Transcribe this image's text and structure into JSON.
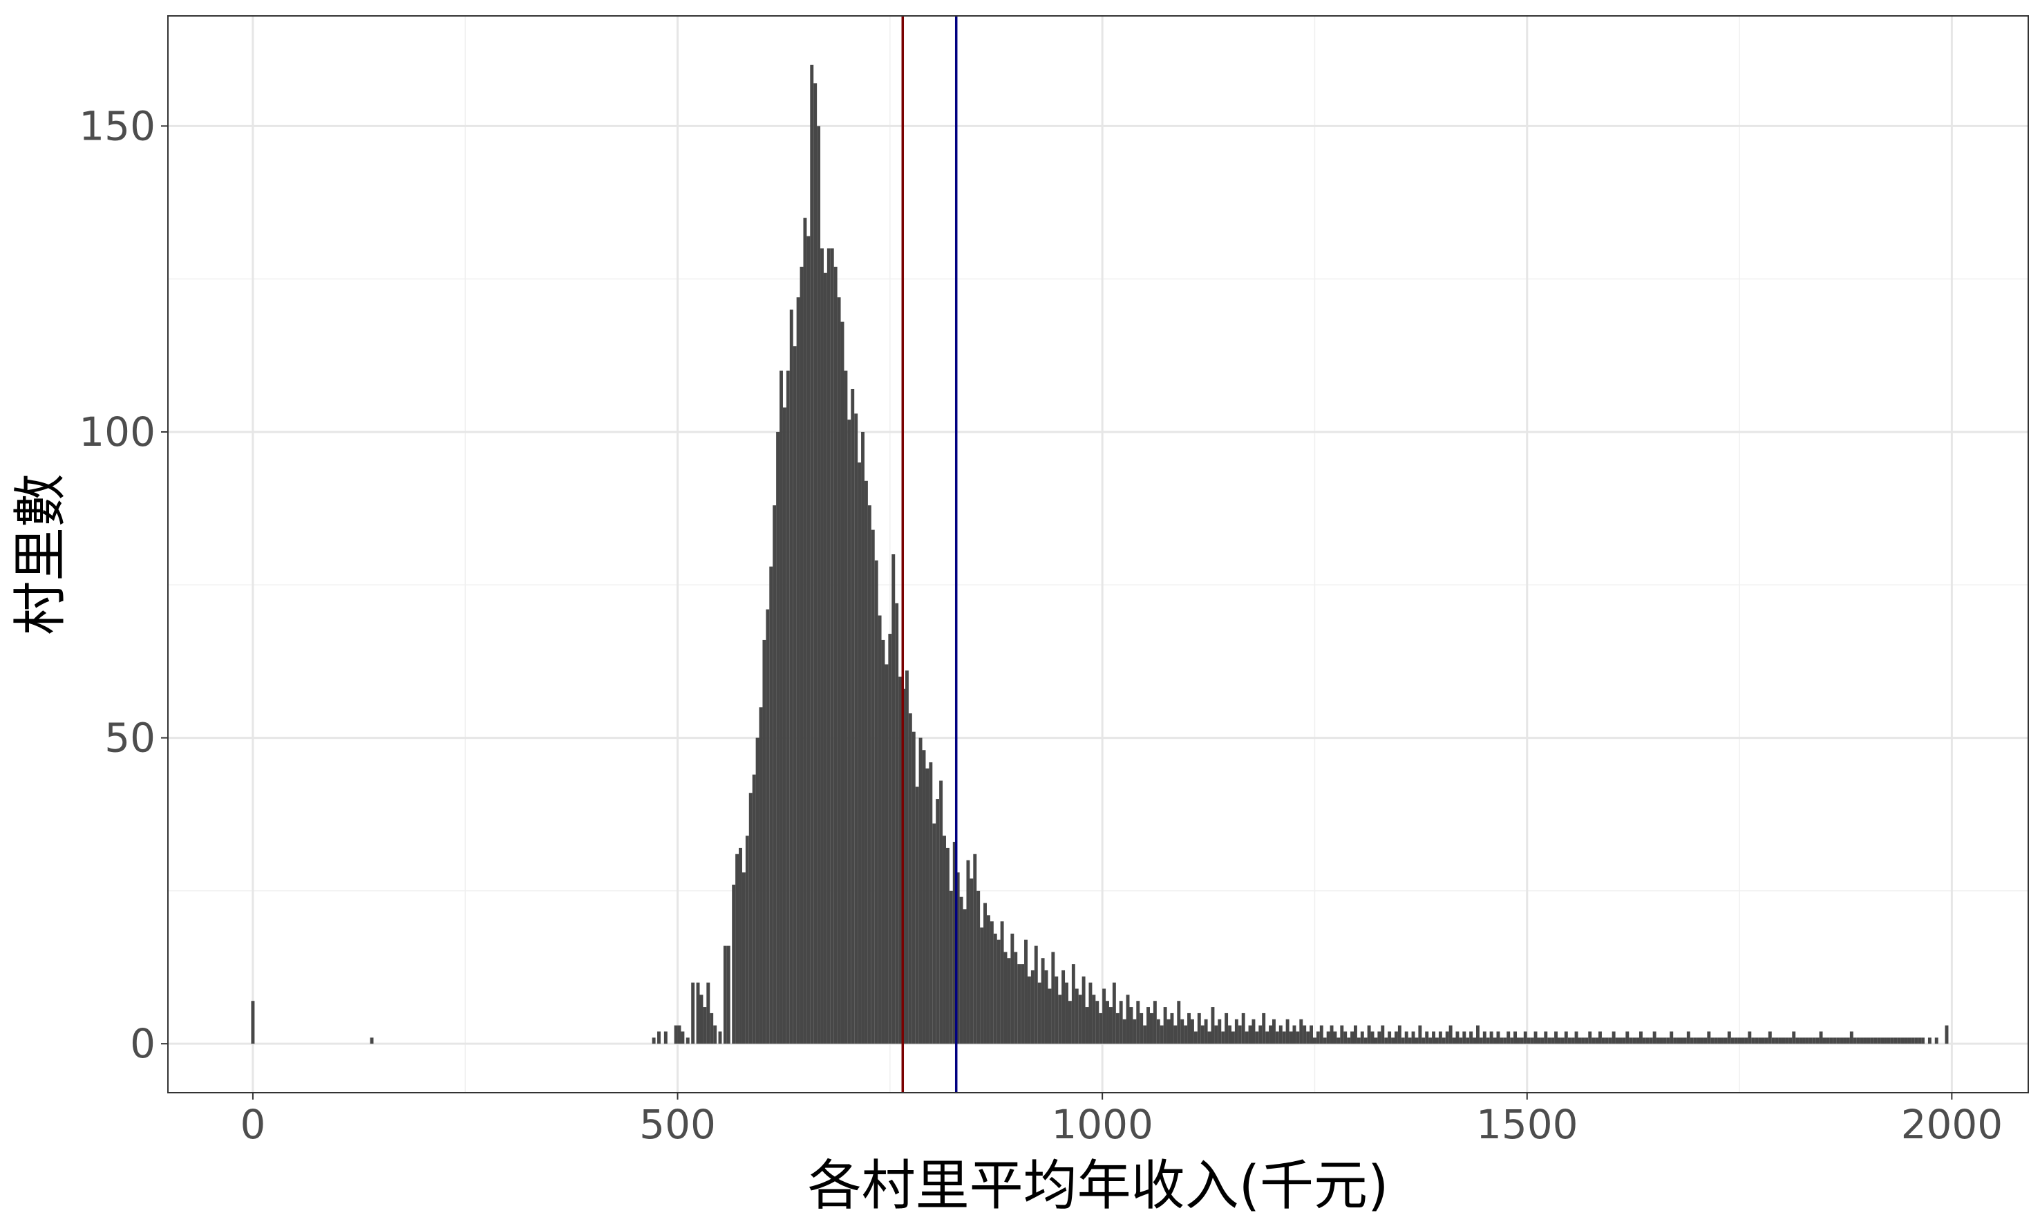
{
  "chart_data": {
    "type": "bar",
    "subtype": "histogram",
    "title": "",
    "xlabel": "各村里平均年收入(千元)",
    "ylabel": "村里數",
    "xlim": [
      -100,
      2090
    ],
    "ylim": [
      -8,
      168
    ],
    "x_ticks": [
      0,
      500,
      1000,
      1500,
      2000
    ],
    "x_tick_labels": [
      "0",
      "500",
      "1000",
      "1500",
      "2000"
    ],
    "y_ticks": [
      0,
      50,
      100,
      150
    ],
    "y_tick_labels": [
      "0",
      "50",
      "100",
      "150"
    ],
    "grid": true,
    "theme": "bw",
    "bin_width": 4,
    "bar_color": "#474747",
    "bins": [
      [
        0,
        7
      ],
      [
        140,
        1
      ],
      [
        472,
        1
      ],
      [
        478,
        2
      ],
      [
        486,
        2
      ],
      [
        498,
        3
      ],
      [
        502,
        3
      ],
      [
        506,
        2
      ],
      [
        512,
        1
      ],
      [
        518,
        10
      ],
      [
        524,
        10
      ],
      [
        528,
        8
      ],
      [
        532,
        6
      ],
      [
        536,
        10
      ],
      [
        540,
        5
      ],
      [
        544,
        3
      ],
      [
        550,
        2
      ],
      [
        556,
        16
      ],
      [
        560,
        16
      ],
      [
        566,
        26
      ],
      [
        570,
        31
      ],
      [
        574,
        32
      ],
      [
        578,
        28
      ],
      [
        582,
        34
      ],
      [
        586,
        41
      ],
      [
        590,
        44
      ],
      [
        594,
        50
      ],
      [
        598,
        55
      ],
      [
        602,
        66
      ],
      [
        606,
        71
      ],
      [
        610,
        78
      ],
      [
        614,
        88
      ],
      [
        618,
        100
      ],
      [
        622,
        110
      ],
      [
        626,
        104
      ],
      [
        630,
        110
      ],
      [
        634,
        120
      ],
      [
        638,
        114
      ],
      [
        642,
        122
      ],
      [
        646,
        127
      ],
      [
        650,
        135
      ],
      [
        654,
        132
      ],
      [
        658,
        160
      ],
      [
        662,
        157
      ],
      [
        666,
        150
      ],
      [
        670,
        130
      ],
      [
        674,
        126
      ],
      [
        678,
        130
      ],
      [
        682,
        130
      ],
      [
        686,
        127
      ],
      [
        690,
        122
      ],
      [
        694,
        118
      ],
      [
        698,
        110
      ],
      [
        702,
        102
      ],
      [
        706,
        107
      ],
      [
        710,
        103
      ],
      [
        714,
        95
      ],
      [
        718,
        100
      ],
      [
        722,
        92
      ],
      [
        726,
        88
      ],
      [
        730,
        84
      ],
      [
        734,
        79
      ],
      [
        738,
        70
      ],
      [
        742,
        66
      ],
      [
        746,
        62
      ],
      [
        750,
        67
      ],
      [
        754,
        80
      ],
      [
        758,
        72
      ],
      [
        762,
        60
      ],
      [
        766,
        58
      ],
      [
        770,
        61
      ],
      [
        774,
        54
      ],
      [
        778,
        51
      ],
      [
        782,
        42
      ],
      [
        786,
        50
      ],
      [
        790,
        48
      ],
      [
        794,
        45
      ],
      [
        798,
        46
      ],
      [
        802,
        36
      ],
      [
        806,
        40
      ],
      [
        810,
        43
      ],
      [
        814,
        34
      ],
      [
        818,
        32
      ],
      [
        822,
        25
      ],
      [
        826,
        33
      ],
      [
        830,
        28
      ],
      [
        834,
        24
      ],
      [
        838,
        22
      ],
      [
        842,
        30
      ],
      [
        846,
        27
      ],
      [
        850,
        31
      ],
      [
        854,
        25
      ],
      [
        858,
        19
      ],
      [
        862,
        23
      ],
      [
        866,
        21
      ],
      [
        870,
        20
      ],
      [
        874,
        18
      ],
      [
        878,
        17
      ],
      [
        882,
        20
      ],
      [
        886,
        15
      ],
      [
        890,
        14
      ],
      [
        894,
        18
      ],
      [
        898,
        15
      ],
      [
        902,
        13
      ],
      [
        906,
        13
      ],
      [
        910,
        17
      ],
      [
        914,
        11
      ],
      [
        918,
        12
      ],
      [
        922,
        16
      ],
      [
        926,
        10
      ],
      [
        930,
        14
      ],
      [
        934,
        12
      ],
      [
        938,
        9
      ],
      [
        942,
        15
      ],
      [
        946,
        11
      ],
      [
        950,
        8
      ],
      [
        954,
        12
      ],
      [
        958,
        10
      ],
      [
        962,
        7
      ],
      [
        966,
        13
      ],
      [
        970,
        9
      ],
      [
        974,
        8
      ],
      [
        978,
        11
      ],
      [
        982,
        6
      ],
      [
        986,
        10
      ],
      [
        990,
        8
      ],
      [
        994,
        7
      ],
      [
        998,
        5
      ],
      [
        1002,
        9
      ],
      [
        1006,
        7
      ],
      [
        1010,
        6
      ],
      [
        1014,
        10
      ],
      [
        1018,
        5
      ],
      [
        1022,
        7
      ],
      [
        1026,
        4
      ],
      [
        1030,
        8
      ],
      [
        1034,
        6
      ],
      [
        1038,
        4
      ],
      [
        1042,
        7
      ],
      [
        1046,
        5
      ],
      [
        1050,
        3
      ],
      [
        1054,
        6
      ],
      [
        1058,
        5
      ],
      [
        1062,
        7
      ],
      [
        1066,
        4
      ],
      [
        1070,
        3
      ],
      [
        1074,
        6
      ],
      [
        1078,
        4
      ],
      [
        1082,
        5
      ],
      [
        1086,
        3
      ],
      [
        1090,
        7
      ],
      [
        1094,
        4
      ],
      [
        1098,
        3
      ],
      [
        1102,
        5
      ],
      [
        1106,
        4
      ],
      [
        1110,
        2
      ],
      [
        1114,
        5
      ],
      [
        1118,
        3
      ],
      [
        1122,
        4
      ],
      [
        1126,
        2
      ],
      [
        1130,
        6
      ],
      [
        1134,
        3
      ],
      [
        1138,
        4
      ],
      [
        1142,
        2
      ],
      [
        1146,
        5
      ],
      [
        1150,
        3
      ],
      [
        1154,
        2
      ],
      [
        1158,
        4
      ],
      [
        1162,
        3
      ],
      [
        1166,
        5
      ],
      [
        1170,
        2
      ],
      [
        1174,
        3
      ],
      [
        1178,
        4
      ],
      [
        1182,
        2
      ],
      [
        1186,
        3
      ],
      [
        1190,
        5
      ],
      [
        1194,
        2
      ],
      [
        1198,
        3
      ],
      [
        1202,
        4
      ],
      [
        1206,
        2
      ],
      [
        1210,
        3
      ],
      [
        1214,
        2
      ],
      [
        1218,
        4
      ],
      [
        1222,
        2
      ],
      [
        1226,
        3
      ],
      [
        1230,
        2
      ],
      [
        1234,
        4
      ],
      [
        1238,
        3
      ],
      [
        1242,
        2
      ],
      [
        1246,
        3
      ],
      [
        1250,
        1
      ],
      [
        1254,
        2
      ],
      [
        1258,
        3
      ],
      [
        1262,
        1
      ],
      [
        1266,
        2
      ],
      [
        1270,
        3
      ],
      [
        1274,
        2
      ],
      [
        1278,
        1
      ],
      [
        1282,
        3
      ],
      [
        1286,
        2
      ],
      [
        1290,
        1
      ],
      [
        1294,
        2
      ],
      [
        1298,
        3
      ],
      [
        1302,
        1
      ],
      [
        1306,
        2
      ],
      [
        1310,
        1
      ],
      [
        1314,
        3
      ],
      [
        1318,
        2
      ],
      [
        1322,
        1
      ],
      [
        1326,
        2
      ],
      [
        1330,
        3
      ],
      [
        1334,
        1
      ],
      [
        1338,
        2
      ],
      [
        1342,
        1
      ],
      [
        1346,
        2
      ],
      [
        1350,
        3
      ],
      [
        1354,
        1
      ],
      [
        1358,
        2
      ],
      [
        1362,
        1
      ],
      [
        1366,
        2
      ],
      [
        1370,
        1
      ],
      [
        1374,
        3
      ],
      [
        1378,
        1
      ],
      [
        1382,
        2
      ],
      [
        1386,
        1
      ],
      [
        1390,
        2
      ],
      [
        1394,
        1
      ],
      [
        1398,
        2
      ],
      [
        1402,
        1
      ],
      [
        1406,
        2
      ],
      [
        1410,
        3
      ],
      [
        1414,
        1
      ],
      [
        1418,
        2
      ],
      [
        1422,
        1
      ],
      [
        1426,
        2
      ],
      [
        1430,
        1
      ],
      [
        1434,
        2
      ],
      [
        1438,
        1
      ],
      [
        1442,
        3
      ],
      [
        1446,
        1
      ],
      [
        1450,
        2
      ],
      [
        1454,
        1
      ],
      [
        1458,
        2
      ],
      [
        1462,
        1
      ],
      [
        1466,
        2
      ],
      [
        1470,
        1
      ],
      [
        1474,
        1
      ],
      [
        1478,
        2
      ],
      [
        1482,
        1
      ],
      [
        1486,
        2
      ],
      [
        1490,
        1
      ],
      [
        1494,
        1
      ],
      [
        1498,
        2
      ],
      [
        1502,
        1
      ],
      [
        1506,
        1
      ],
      [
        1510,
        2
      ],
      [
        1514,
        1
      ],
      [
        1518,
        1
      ],
      [
        1522,
        2
      ],
      [
        1526,
        1
      ],
      [
        1530,
        1
      ],
      [
        1534,
        2
      ],
      [
        1538,
        1
      ],
      [
        1542,
        1
      ],
      [
        1546,
        2
      ],
      [
        1550,
        1
      ],
      [
        1554,
        1
      ],
      [
        1558,
        2
      ],
      [
        1562,
        1
      ],
      [
        1566,
        1
      ],
      [
        1570,
        1
      ],
      [
        1574,
        2
      ],
      [
        1578,
        1
      ],
      [
        1582,
        1
      ],
      [
        1586,
        2
      ],
      [
        1590,
        1
      ],
      [
        1594,
        1
      ],
      [
        1598,
        1
      ],
      [
        1602,
        2
      ],
      [
        1606,
        1
      ],
      [
        1610,
        1
      ],
      [
        1614,
        1
      ],
      [
        1618,
        2
      ],
      [
        1622,
        1
      ],
      [
        1626,
        1
      ],
      [
        1630,
        1
      ],
      [
        1634,
        2
      ],
      [
        1638,
        1
      ],
      [
        1642,
        1
      ],
      [
        1646,
        1
      ],
      [
        1650,
        2
      ],
      [
        1654,
        1
      ],
      [
        1658,
        1
      ],
      [
        1662,
        1
      ],
      [
        1666,
        1
      ],
      [
        1670,
        2
      ],
      [
        1674,
        1
      ],
      [
        1678,
        1
      ],
      [
        1682,
        1
      ],
      [
        1686,
        1
      ],
      [
        1690,
        2
      ],
      [
        1694,
        1
      ],
      [
        1698,
        1
      ],
      [
        1702,
        1
      ],
      [
        1706,
        1
      ],
      [
        1710,
        1
      ],
      [
        1714,
        2
      ],
      [
        1718,
        1
      ],
      [
        1722,
        1
      ],
      [
        1726,
        1
      ],
      [
        1730,
        1
      ],
      [
        1734,
        1
      ],
      [
        1738,
        2
      ],
      [
        1742,
        1
      ],
      [
        1746,
        1
      ],
      [
        1750,
        1
      ],
      [
        1754,
        1
      ],
      [
        1758,
        1
      ],
      [
        1762,
        2
      ],
      [
        1766,
        1
      ],
      [
        1770,
        1
      ],
      [
        1774,
        1
      ],
      [
        1778,
        1
      ],
      [
        1782,
        1
      ],
      [
        1786,
        2
      ],
      [
        1790,
        1
      ],
      [
        1794,
        1
      ],
      [
        1798,
        1
      ],
      [
        1802,
        1
      ],
      [
        1806,
        1
      ],
      [
        1810,
        1
      ],
      [
        1814,
        2
      ],
      [
        1818,
        1
      ],
      [
        1822,
        1
      ],
      [
        1826,
        1
      ],
      [
        1830,
        1
      ],
      [
        1834,
        1
      ],
      [
        1838,
        1
      ],
      [
        1842,
        1
      ],
      [
        1846,
        2
      ],
      [
        1850,
        1
      ],
      [
        1854,
        1
      ],
      [
        1858,
        1
      ],
      [
        1862,
        1
      ],
      [
        1866,
        1
      ],
      [
        1870,
        1
      ],
      [
        1874,
        1
      ],
      [
        1878,
        1
      ],
      [
        1882,
        2
      ],
      [
        1886,
        1
      ],
      [
        1890,
        1
      ],
      [
        1894,
        1
      ],
      [
        1898,
        1
      ],
      [
        1902,
        1
      ],
      [
        1906,
        1
      ],
      [
        1910,
        1
      ],
      [
        1914,
        1
      ],
      [
        1918,
        1
      ],
      [
        1922,
        1
      ],
      [
        1926,
        1
      ],
      [
        1930,
        1
      ],
      [
        1934,
        1
      ],
      [
        1938,
        1
      ],
      [
        1942,
        1
      ],
      [
        1946,
        1
      ],
      [
        1950,
        1
      ],
      [
        1954,
        1
      ],
      [
        1958,
        1
      ],
      [
        1962,
        1
      ],
      [
        1966,
        1
      ],
      [
        1974,
        1
      ],
      [
        1982,
        1
      ],
      [
        1994,
        3
      ]
    ],
    "vlines": [
      {
        "x": 765,
        "color": "#7a0000"
      },
      {
        "x": 828,
        "color": "#000080"
      }
    ]
  }
}
